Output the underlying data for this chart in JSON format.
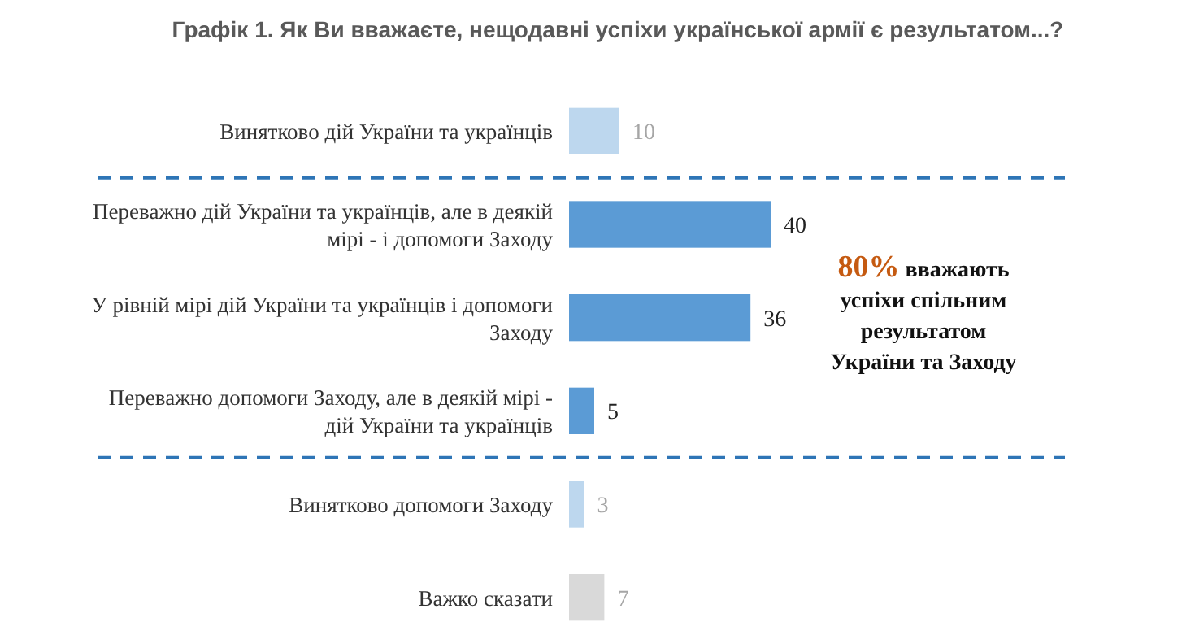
{
  "chart_data": {
    "type": "bar",
    "orientation": "horizontal",
    "title": "Графік 1. Як Ви вважаєте, нещодавні успіхи української армії є результатом...?",
    "categories": [
      "Винятково дій України та українців",
      "Переважно дій України та українців, але в деякій мірі - і допомоги Заходу",
      "У рівній мірі дій України та українців і допомоги Заходу",
      "Переважно допомоги Заходу, але в деякій мірі - дій України та українців",
      "Винятково допомоги Заходу",
      "Важко сказати"
    ],
    "values": [
      10,
      40,
      36,
      5,
      3,
      7
    ],
    "colors": [
      "#bdd7ee",
      "#5b9bd5",
      "#5b9bd5",
      "#5b9bd5",
      "#bdd7ee",
      "#d9d9d9"
    ],
    "data_labels": true,
    "annotations": [
      "80% вважають успіхи спільним результатом України та Заходу"
    ]
  }
}
